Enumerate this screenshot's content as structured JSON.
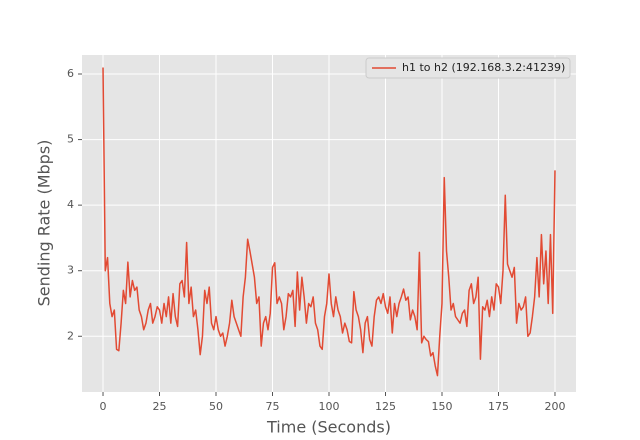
{
  "chart_data": {
    "type": "line",
    "xlabel": "Time (Seconds)",
    "ylabel": "Sending Rate (Mbps)",
    "x": [
      0,
      1,
      2,
      3,
      4,
      5,
      6,
      7,
      8,
      9,
      10,
      11,
      12,
      13,
      14,
      15,
      16,
      17,
      18,
      19,
      20,
      21,
      22,
      23,
      24,
      25,
      26,
      27,
      28,
      29,
      30,
      31,
      32,
      33,
      34,
      35,
      36,
      37,
      38,
      39,
      40,
      41,
      42,
      43,
      44,
      45,
      46,
      47,
      48,
      49,
      50,
      51,
      52,
      53,
      54,
      55,
      56,
      57,
      58,
      59,
      60,
      61,
      62,
      63,
      64,
      65,
      66,
      67,
      68,
      69,
      70,
      71,
      72,
      73,
      74,
      75,
      76,
      77,
      78,
      79,
      80,
      81,
      82,
      83,
      84,
      85,
      86,
      87,
      88,
      89,
      90,
      91,
      92,
      93,
      94,
      95,
      96,
      97,
      98,
      99,
      100,
      101,
      102,
      103,
      104,
      105,
      106,
      107,
      108,
      109,
      110,
      111,
      112,
      113,
      114,
      115,
      116,
      117,
      118,
      119,
      120,
      121,
      122,
      123,
      124,
      125,
      126,
      127,
      128,
      129,
      130,
      131,
      132,
      133,
      134,
      135,
      136,
      137,
      138,
      139,
      140,
      141,
      142,
      143,
      144,
      145,
      146,
      147,
      148,
      149,
      150,
      151,
      152,
      153,
      154,
      155,
      156,
      157,
      158,
      159,
      160,
      161,
      162,
      163,
      164,
      165,
      166,
      167,
      168,
      169,
      170,
      171,
      172,
      173,
      174,
      175,
      176,
      177,
      178,
      179,
      180,
      181,
      182,
      183,
      184,
      185,
      186,
      187,
      188,
      189,
      190,
      191,
      192,
      193,
      194,
      195,
      196,
      197,
      198,
      199,
      200
    ],
    "series": [
      {
        "name": "h1 to h2 (192.168.3.2:41239)",
        "color": "#e24a33",
        "values": [
          6.1,
          3.0,
          3.2,
          2.5,
          2.3,
          2.4,
          1.8,
          1.78,
          2.2,
          2.7,
          2.5,
          3.13,
          2.6,
          2.85,
          2.7,
          2.75,
          2.4,
          2.3,
          2.1,
          2.2,
          2.4,
          2.5,
          2.2,
          2.3,
          2.45,
          2.4,
          2.2,
          2.5,
          2.3,
          2.6,
          2.2,
          2.65,
          2.3,
          2.15,
          2.8,
          2.85,
          2.6,
          3.43,
          2.5,
          2.75,
          2.3,
          2.4,
          2.1,
          1.72,
          2.0,
          2.7,
          2.5,
          2.75,
          2.2,
          2.1,
          2.3,
          2.1,
          2.0,
          2.05,
          1.85,
          2.0,
          2.2,
          2.55,
          2.3,
          2.2,
          2.1,
          2.0,
          2.6,
          2.9,
          3.48,
          3.3,
          3.1,
          2.9,
          2.5,
          2.6,
          1.85,
          2.2,
          2.3,
          2.1,
          2.35,
          3.05,
          3.12,
          2.5,
          2.6,
          2.5,
          2.1,
          2.3,
          2.65,
          2.6,
          2.7,
          2.15,
          2.98,
          2.4,
          2.9,
          2.6,
          2.2,
          2.5,
          2.45,
          2.6,
          2.2,
          2.1,
          1.85,
          1.8,
          2.3,
          2.5,
          2.95,
          2.5,
          2.3,
          2.6,
          2.4,
          2.3,
          2.05,
          2.2,
          2.1,
          1.92,
          1.9,
          2.68,
          2.4,
          2.3,
          2.1,
          1.75,
          2.2,
          2.3,
          1.95,
          1.85,
          2.3,
          2.55,
          2.6,
          2.5,
          2.65,
          2.45,
          2.35,
          2.6,
          2.05,
          2.5,
          2.3,
          2.5,
          2.6,
          2.72,
          2.55,
          2.6,
          2.25,
          2.4,
          2.3,
          2.1,
          3.28,
          1.9,
          2.0,
          1.95,
          1.92,
          1.7,
          1.75,
          1.55,
          1.4,
          2.0,
          2.5,
          4.42,
          3.3,
          2.9,
          2.4,
          2.5,
          2.3,
          2.25,
          2.2,
          2.35,
          2.4,
          2.15,
          2.7,
          2.8,
          2.5,
          2.6,
          2.9,
          1.65,
          2.45,
          2.4,
          2.55,
          2.3,
          2.6,
          2.4,
          2.8,
          2.75,
          2.5,
          3.0,
          4.15,
          3.1,
          3.0,
          2.9,
          3.05,
          2.2,
          2.5,
          2.4,
          2.45,
          2.6,
          2.0,
          2.05,
          2.3,
          2.6,
          3.2,
          2.6,
          3.55,
          2.8,
          3.3,
          2.5,
          3.55,
          2.35,
          4.53
        ]
      }
    ],
    "xlim": [
      -9.3,
      209.3
    ],
    "ylim": [
      1.15,
      6.29
    ],
    "xticks": [
      0,
      25,
      50,
      75,
      100,
      125,
      150,
      175,
      200
    ],
    "yticks": [
      2,
      3,
      4,
      5,
      6
    ],
    "grid": true,
    "legend": "upper right"
  }
}
